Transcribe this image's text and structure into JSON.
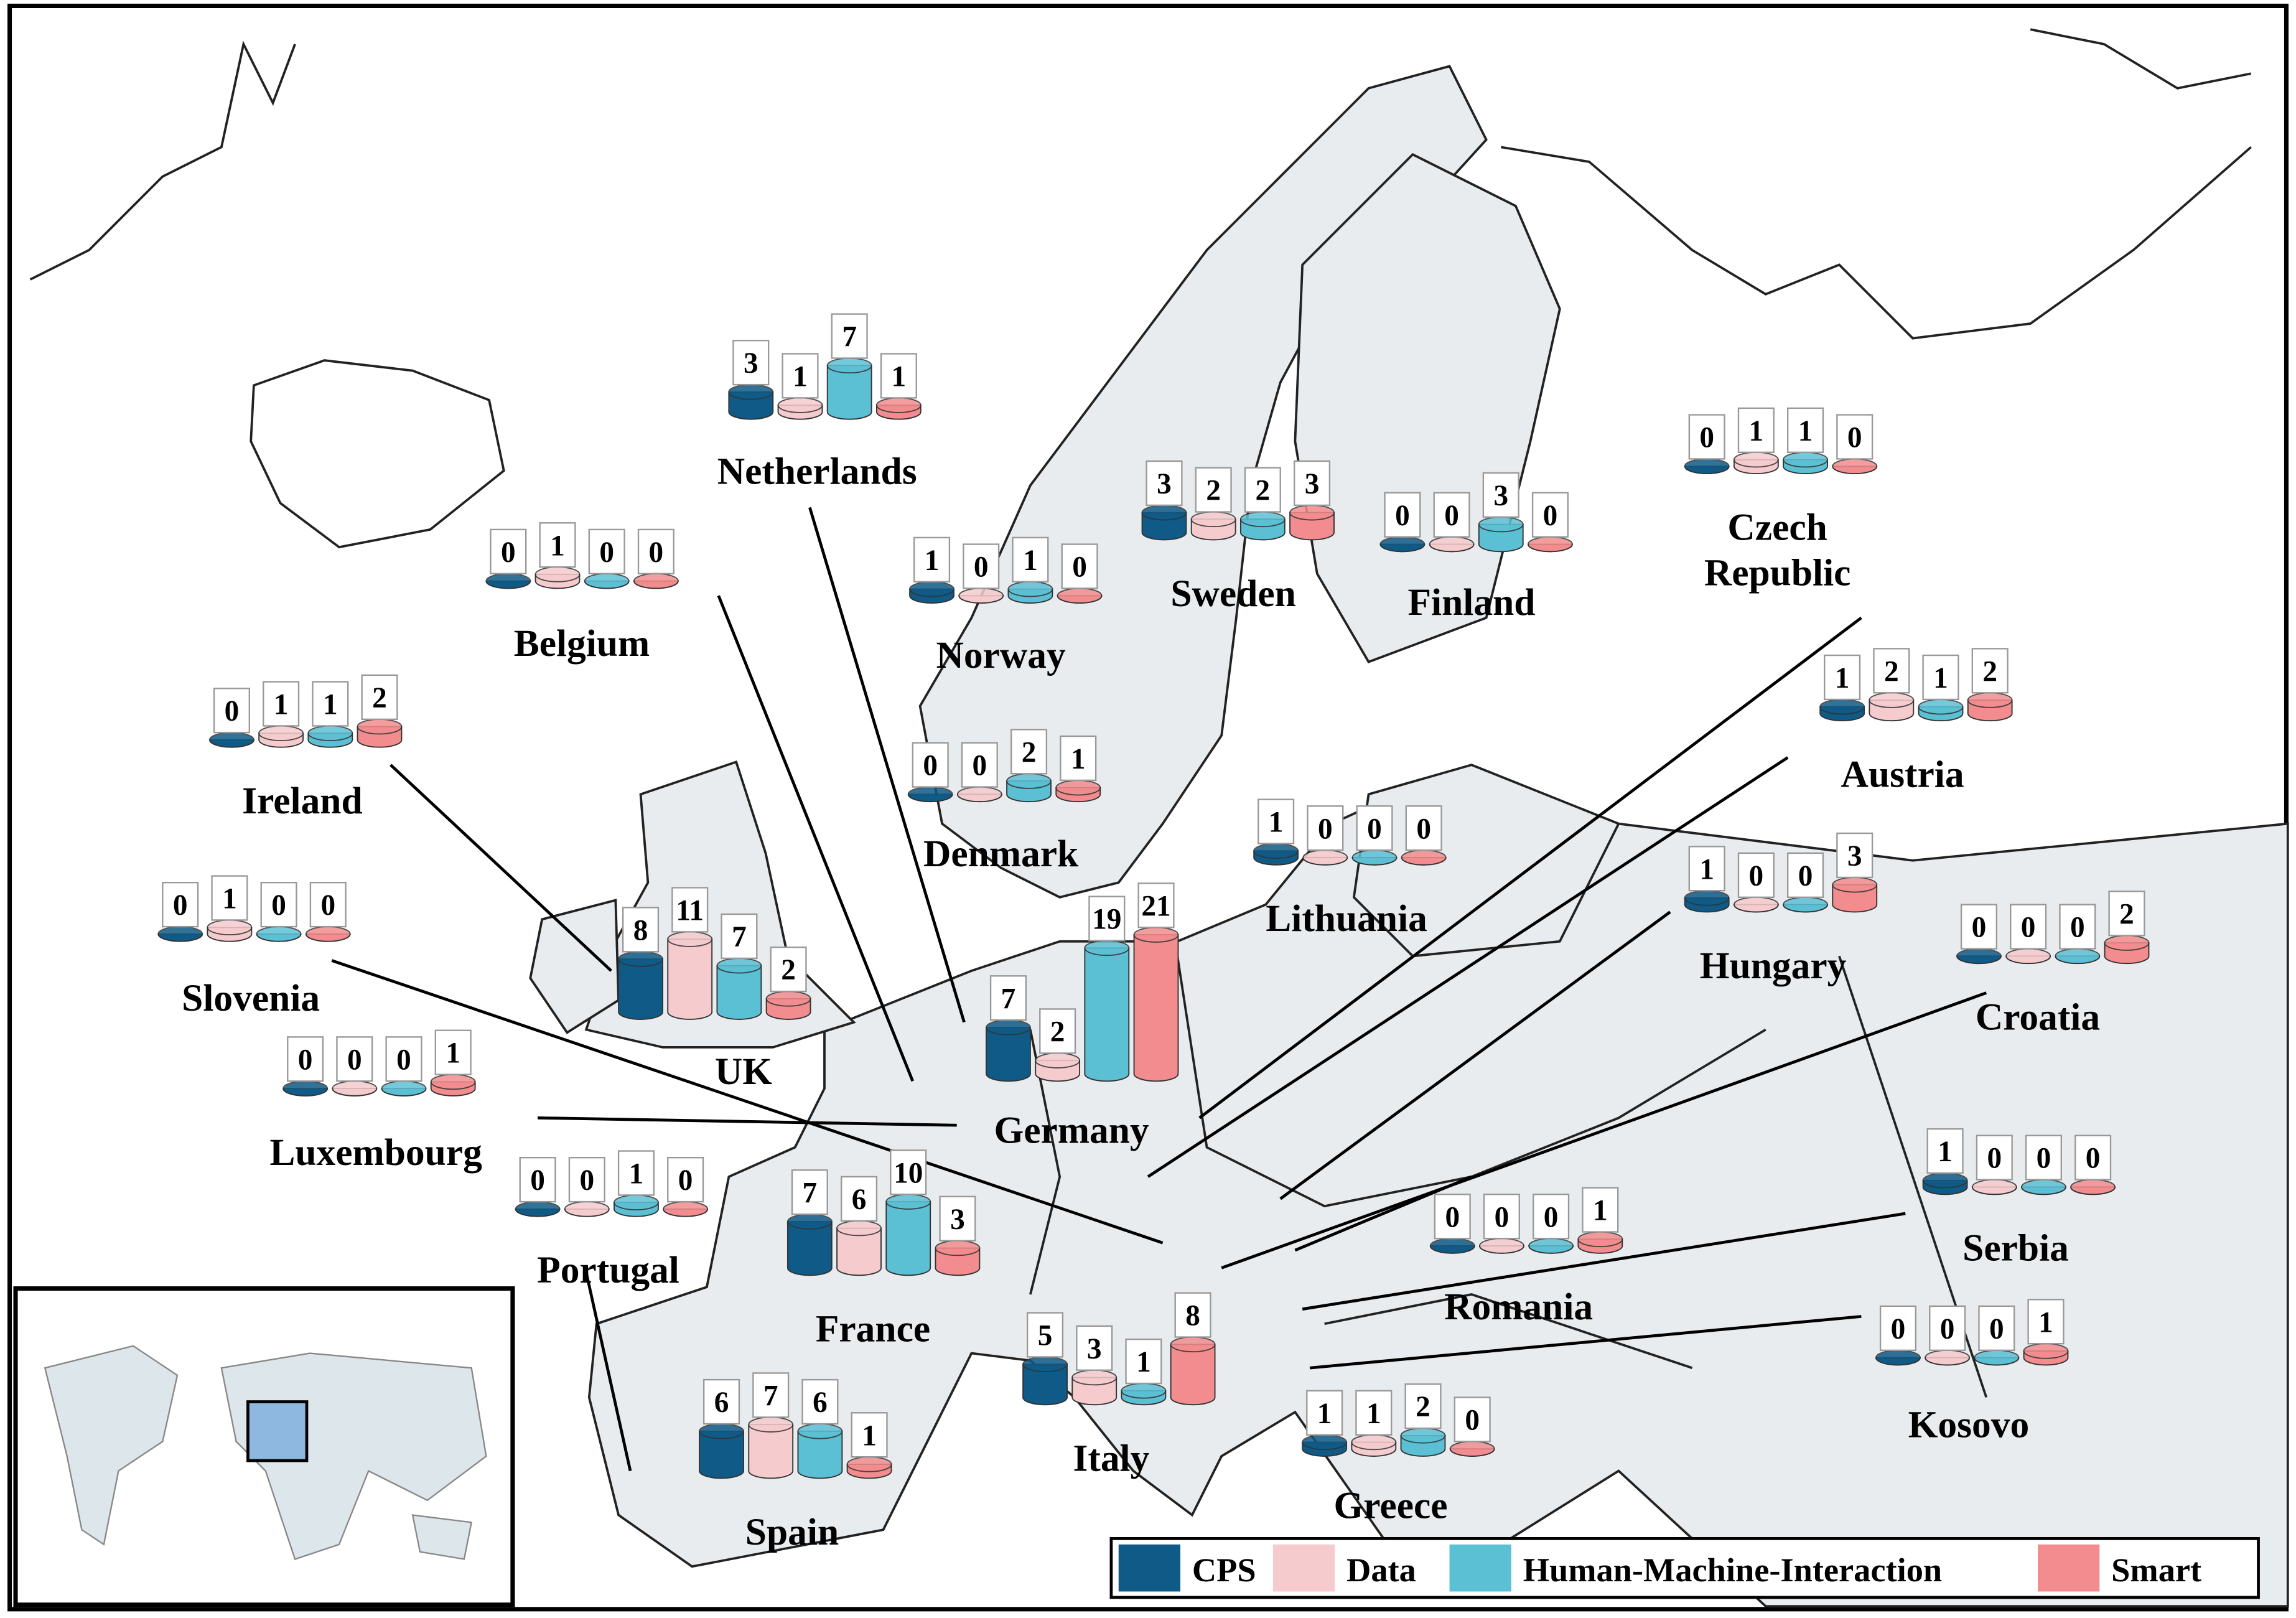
{
  "legend": {
    "series": [
      {
        "name": "CPS",
        "color": "#0f5a86"
      },
      {
        "name": "Data",
        "color": "#f5cbcd"
      },
      {
        "name": "Human-Machine-Interaction",
        "color": "#5cc0d5"
      },
      {
        "name": "Smart",
        "color": "#f28c8e"
      }
    ]
  },
  "countries": [
    {
      "name": "Netherlands",
      "values": [
        3,
        1,
        7,
        1
      ]
    },
    {
      "name": "Belgium",
      "values": [
        0,
        1,
        0,
        0
      ]
    },
    {
      "name": "Norway",
      "values": [
        1,
        0,
        1,
        0
      ]
    },
    {
      "name": "Sweden",
      "values": [
        3,
        2,
        2,
        3
      ]
    },
    {
      "name": "Finland",
      "values": [
        0,
        0,
        3,
        0
      ]
    },
    {
      "name": "Czech Republic",
      "values": [
        0,
        1,
        1,
        0
      ]
    },
    {
      "name": "Ireland",
      "values": [
        0,
        1,
        1,
        2
      ]
    },
    {
      "name": "Denmark",
      "values": [
        0,
        0,
        2,
        1
      ]
    },
    {
      "name": "Lithuania",
      "values": [
        1,
        0,
        0,
        0
      ]
    },
    {
      "name": "Austria",
      "values": [
        1,
        2,
        1,
        2
      ]
    },
    {
      "name": "Hungary",
      "values": [
        1,
        0,
        0,
        3
      ]
    },
    {
      "name": "Croatia",
      "values": [
        0,
        0,
        0,
        2
      ]
    },
    {
      "name": "Slovenia",
      "values": [
        0,
        1,
        0,
        0
      ]
    },
    {
      "name": "UK",
      "values": [
        8,
        11,
        7,
        2
      ]
    },
    {
      "name": "Germany",
      "values": [
        7,
        2,
        19,
        21
      ]
    },
    {
      "name": "Luxembourg",
      "values": [
        0,
        0,
        0,
        1
      ]
    },
    {
      "name": "Portugal",
      "values": [
        0,
        0,
        1,
        0
      ]
    },
    {
      "name": "France",
      "values": [
        7,
        6,
        10,
        3
      ]
    },
    {
      "name": "Serbia",
      "values": [
        1,
        0,
        0,
        0
      ]
    },
    {
      "name": "Romania",
      "values": [
        0,
        0,
        0,
        1
      ]
    },
    {
      "name": "Kosovo",
      "values": [
        0,
        0,
        0,
        1
      ]
    },
    {
      "name": "Spain",
      "values": [
        6,
        7,
        6,
        1
      ]
    },
    {
      "name": "Italy",
      "values": [
        5,
        3,
        1,
        8
      ]
    },
    {
      "name": "Greece",
      "values": [
        1,
        1,
        2,
        0
      ]
    }
  ]
}
